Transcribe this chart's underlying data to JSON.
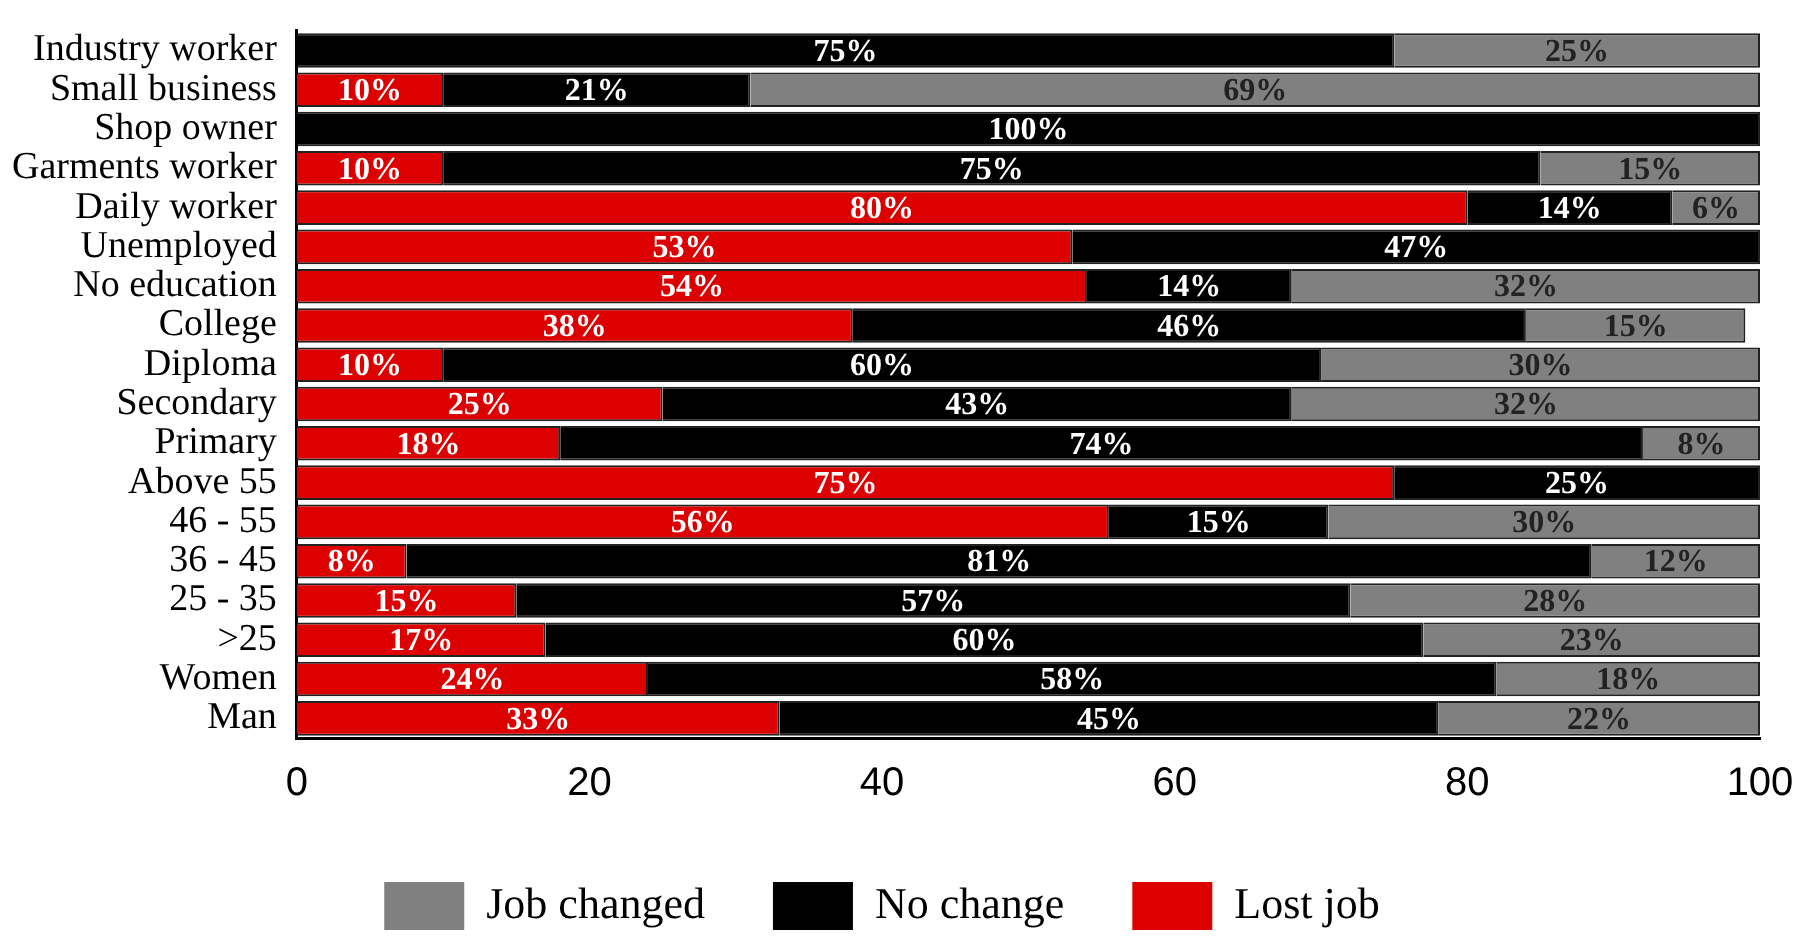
{
  "chart_data": {
    "type": "bar",
    "orientation": "horizontal",
    "stacked": true,
    "legend": "bottom",
    "grid": false,
    "categories": [
      "Industry worker",
      "Small business",
      "Shop owner",
      "Garments worker",
      "Daily worker",
      "Unemployed",
      "No education",
      "College",
      "Diploma",
      "Secondary",
      "Primary",
      "Above 55",
      "46 - 55",
      "36 - 45",
      "25 - 35",
      ">25",
      "Women",
      "Man"
    ],
    "xlim": [
      0,
      100
    ],
    "xticks": [
      0,
      20,
      40,
      60,
      80,
      100
    ],
    "series": [
      {
        "name": "Lost job",
        "color": "#dd0000",
        "values": [
          0,
          10,
          0,
          10,
          80,
          53,
          54,
          38,
          10,
          25,
          18,
          75,
          55.5,
          7.5,
          15,
          17,
          24,
          33
        ],
        "value_labels": [
          null,
          "10%",
          null,
          "10%",
          "80%",
          "53%",
          "54%",
          "38%",
          "10%",
          "25%",
          "18%",
          "75%",
          "56%",
          "8%",
          "15%",
          "17%",
          "24%",
          "33%"
        ]
      },
      {
        "name": "No change",
        "color": "#000000",
        "values": [
          75,
          21,
          100,
          75,
          14,
          47,
          14,
          46,
          60,
          43,
          74,
          25,
          15,
          81,
          57,
          60,
          58,
          45
        ],
        "value_labels": [
          "75%",
          "21%",
          "100%",
          "75%",
          "14%",
          "47%",
          "14%",
          "46%",
          "60%",
          "43%",
          "74%",
          "25%",
          "15%",
          "81%",
          "57%",
          "60%",
          "58%",
          "45%"
        ]
      },
      {
        "name": "Job changed",
        "color": "#808080",
        "values": [
          25,
          69,
          0,
          15,
          6,
          0,
          32,
          15,
          30,
          32,
          8,
          0,
          29.5,
          11.5,
          28,
          23,
          18,
          22
        ],
        "value_labels": [
          "25%",
          "69%",
          null,
          "15%",
          "6%",
          null,
          "32%",
          "15%",
          "30%",
          "32%",
          "8%",
          null,
          "30%",
          "12%",
          "28%",
          "23%",
          "18%",
          "22%"
        ]
      }
    ]
  }
}
